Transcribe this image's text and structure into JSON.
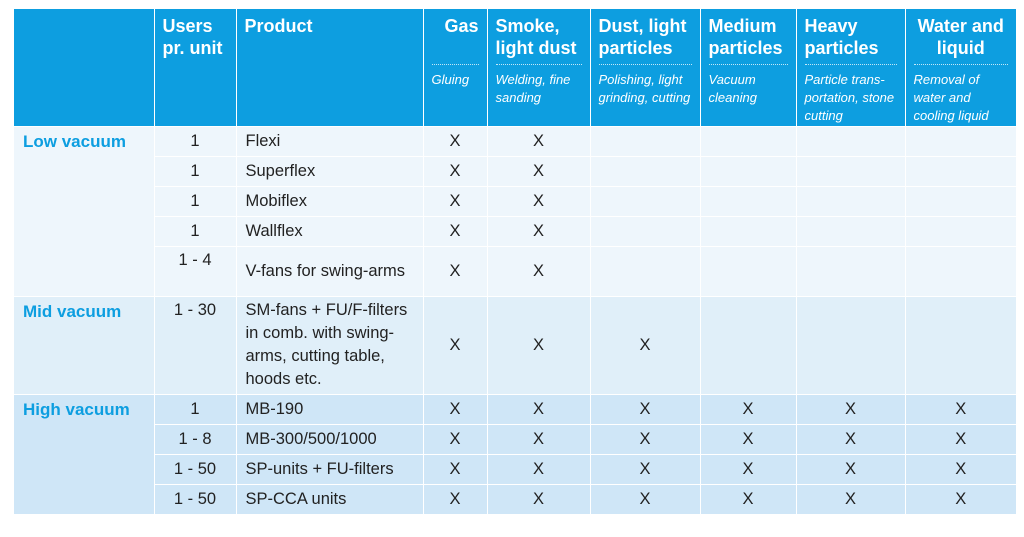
{
  "headers": {
    "group": "",
    "users": "Users pr. unit",
    "product": "Product",
    "columns": [
      {
        "title": "Gas",
        "sub": "Gluing"
      },
      {
        "title": "Smoke, light dust",
        "sub": "Welding, fine sanding"
      },
      {
        "title": "Dust, light particles",
        "sub": "Polishing, light grinding, cutting"
      },
      {
        "title": "Medium particles",
        "sub": "Vacuum cleaning"
      },
      {
        "title": "Heavy particles",
        "sub": "Particle trans-portation, stone cutting"
      },
      {
        "title": "Water and liquid",
        "sub": "Removal of water and cooling liquid"
      }
    ]
  },
  "groups": [
    {
      "label": "Low vacuum",
      "rows": [
        {
          "users": "1",
          "product": "Flexi",
          "marks": [
            "X",
            "X",
            "",
            "",
            "",
            ""
          ]
        },
        {
          "users": "1",
          "product": "Superflex",
          "marks": [
            "X",
            "X",
            "",
            "",
            "",
            ""
          ]
        },
        {
          "users": "1",
          "product": "Mobiflex",
          "marks": [
            "X",
            "X",
            "",
            "",
            "",
            ""
          ]
        },
        {
          "users": "1",
          "product": "Wallflex",
          "marks": [
            "X",
            "X",
            "",
            "",
            "",
            ""
          ]
        },
        {
          "users": "1 - 4",
          "product": "V-fans for swing-arms",
          "marks": [
            "X",
            "X",
            "",
            "",
            "",
            ""
          ]
        }
      ]
    },
    {
      "label": "Mid vacuum",
      "rows": [
        {
          "users": "1 - 30",
          "product": "SM-fans + FU/F-filters in comb. with swing-arms, cutting table, hoods etc.",
          "marks": [
            "X",
            "X",
            "X",
            "",
            "",
            ""
          ]
        }
      ]
    },
    {
      "label": "High vacuum",
      "rows": [
        {
          "users": "1",
          "product": "MB-190",
          "marks": [
            "X",
            "X",
            "X",
            "X",
            "X",
            "X"
          ]
        },
        {
          "users": "1 - 8",
          "product": "MB-300/500/1000",
          "marks": [
            "X",
            "X",
            "X",
            "X",
            "X",
            "X"
          ]
        },
        {
          "users": "1 - 50",
          "product": "SP-units + FU-filters",
          "marks": [
            "X",
            "X",
            "X",
            "X",
            "X",
            "X"
          ]
        },
        {
          "users": "1 - 50",
          "product": "SP-CCA units",
          "marks": [
            "X",
            "X",
            "X",
            "X",
            "X",
            "X"
          ]
        }
      ]
    }
  ]
}
